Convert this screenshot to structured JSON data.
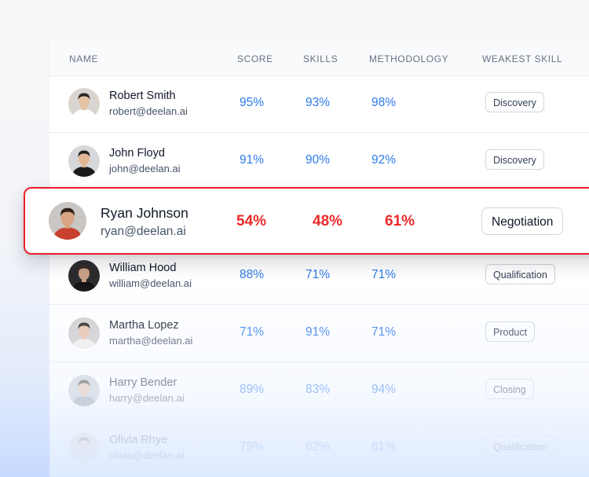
{
  "columns": {
    "name": "NAME",
    "score": "SCORE",
    "skills": "SKILLS",
    "methodology": "METHODOLOGY",
    "weakest": "WEAKEST SKILL"
  },
  "rows": [
    {
      "name": "Robert Smith",
      "email": "robert@deelan.ai",
      "score": "95%",
      "skills": "93%",
      "methodology": "98%",
      "weakest": "Discovery",
      "avatar_bg": "#d9d4cf",
      "hair": "#2b2724",
      "shirt": "#ffffff",
      "skin": "#e7c3a6"
    },
    {
      "name": "John Floyd",
      "email": "john@deelan.ai",
      "score": "91%",
      "skills": "90%",
      "methodology": "92%",
      "weakest": "Discovery",
      "avatar_bg": "#d5d7da",
      "hair": "#231f1c",
      "shirt": "#1c1c1e",
      "skin": "#e2b796"
    },
    {
      "name": "William Hood",
      "email": "william@deelan.ai",
      "score": "88%",
      "skills": "71%",
      "methodology": "71%",
      "weakest": "Qualification",
      "avatar_bg": "#2c2c2e",
      "hair": "#3a2a1f",
      "shirt": "#111113",
      "skin": "#caa088"
    },
    {
      "name": "Martha Lopez",
      "email": "martha@deelan.ai",
      "score": "71%",
      "skills": "91%",
      "methodology": "71%",
      "weakest": "Product",
      "avatar_bg": "#cfcfcf",
      "hair": "#2a1f18",
      "shirt": "#f1efec",
      "skin": "#e8c3a9"
    },
    {
      "name": "Harry Bender",
      "email": "harry@deelan.ai",
      "score": "89%",
      "skills": "83%",
      "methodology": "94%",
      "weakest": "Closing",
      "avatar_bg": "#c7ccd2",
      "hair": "#3e3a36",
      "shirt": "#9aa0a6",
      "skin": "#e0bfa6"
    },
    {
      "name": "Olivia Rhye",
      "email": "olivia@deelan.ai",
      "score": "79%",
      "skills": "82%",
      "methodology": "61%",
      "weakest": "Qualification",
      "avatar_bg": "#e7dccf",
      "hair": "#6a4a33",
      "shirt": "#e9e3da",
      "skin": "#efd0b7"
    }
  ],
  "highlight": {
    "name": "Ryan Johnson",
    "email": "ryan@deelan.ai",
    "score": "54%",
    "skills": "48%",
    "methodology": "61%",
    "weakest": "Negotiation",
    "avatar_bg": "#c9c6c3",
    "hair": "#2c211a",
    "shirt": "#c8412f",
    "skin": "#d8a483",
    "border_color": "#ea1f2a",
    "value_color": "#ea2a2a"
  },
  "colors": {
    "score_blue": "#2e7bea",
    "header_text": "#667085"
  }
}
